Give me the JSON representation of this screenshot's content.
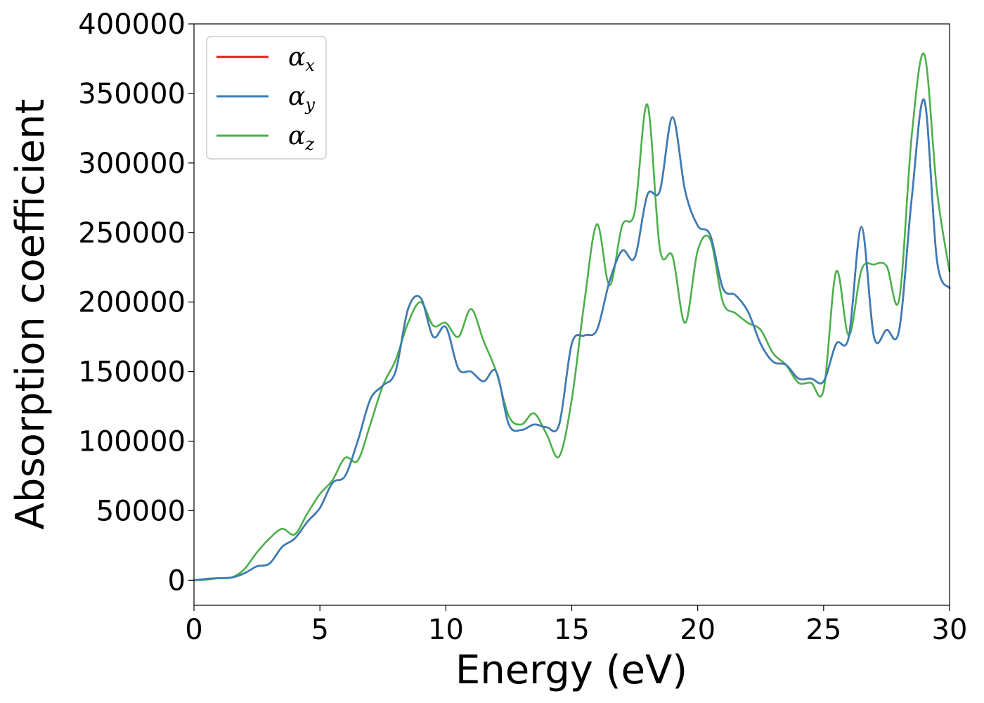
{
  "chart_data": {
    "type": "line",
    "xlabel": "Energy (eV)",
    "ylabel": "Absorption coefficient",
    "xlim": [
      0,
      30
    ],
    "ylim": [
      -18000,
      400000
    ],
    "xticks": [
      0,
      5,
      10,
      15,
      20,
      25,
      30
    ],
    "xtick_labels": [
      "0",
      "5",
      "10",
      "15",
      "20",
      "25",
      "30"
    ],
    "yticks": [
      0,
      50000,
      100000,
      150000,
      200000,
      250000,
      300000,
      350000,
      400000
    ],
    "ytick_labels": [
      "0",
      "50000",
      "100000",
      "150000",
      "200000",
      "250000",
      "300000",
      "350000",
      "400000"
    ],
    "grid": false,
    "legend": {
      "position": "top-left"
    },
    "series": [
      {
        "name": "α",
        "subscript": "x",
        "color": "#e41a1c",
        "x": [
          0,
          0.5,
          1,
          1.5,
          2,
          2.5,
          3,
          3.5,
          4,
          4.5,
          5,
          5.5,
          6,
          6.5,
          7,
          7.5,
          8,
          8.5,
          9,
          9.5,
          10,
          10.5,
          11,
          11.5,
          12,
          12.5,
          13,
          13.5,
          14,
          14.5,
          15,
          15.5,
          16,
          16.5,
          17,
          17.5,
          18,
          18.5,
          19,
          19.5,
          20,
          20.5,
          21,
          21.5,
          22,
          22.5,
          23,
          23.5,
          24,
          24.5,
          25,
          25.5,
          26,
          26.5,
          27,
          27.5,
          28,
          28.5,
          29,
          29.5,
          30
        ],
        "y": [
          0,
          1000,
          1500,
          2000,
          5000,
          10000,
          12000,
          24000,
          30000,
          42000,
          52000,
          70000,
          75000,
          100000,
          130000,
          140000,
          150000,
          195000,
          203000,
          175000,
          182000,
          152000,
          150000,
          143000,
          150000,
          112000,
          108000,
          112000,
          110000,
          112000,
          170000,
          176000,
          180000,
          215000,
          237000,
          232000,
          277000,
          280000,
          333000,
          280000,
          255000,
          248000,
          210000,
          205000,
          193000,
          170000,
          157000,
          155000,
          145000,
          145000,
          143000,
          170000,
          175000,
          254000,
          175000,
          180000,
          180000,
          275000,
          345000,
          230000,
          210000
        ]
      },
      {
        "name": "α",
        "subscript": "y",
        "color": "#377eb8",
        "x": [
          0,
          0.5,
          1,
          1.5,
          2,
          2.5,
          3,
          3.5,
          4,
          4.5,
          5,
          5.5,
          6,
          6.5,
          7,
          7.5,
          8,
          8.5,
          9,
          9.5,
          10,
          10.5,
          11,
          11.5,
          12,
          12.5,
          13,
          13.5,
          14,
          14.5,
          15,
          15.5,
          16,
          16.5,
          17,
          17.5,
          18,
          18.5,
          19,
          19.5,
          20,
          20.5,
          21,
          21.5,
          22,
          22.5,
          23,
          23.5,
          24,
          24.5,
          25,
          25.5,
          26,
          26.5,
          27,
          27.5,
          28,
          28.5,
          29,
          29.5,
          30
        ],
        "y": [
          0,
          1000,
          1500,
          2000,
          5000,
          10000,
          12000,
          24000,
          30000,
          42000,
          52000,
          70000,
          75000,
          100000,
          130000,
          140000,
          150000,
          195000,
          203000,
          175000,
          182000,
          152000,
          150000,
          143000,
          150000,
          112000,
          108000,
          112000,
          110000,
          112000,
          170000,
          176000,
          180000,
          215000,
          237000,
          232000,
          277000,
          280000,
          333000,
          280000,
          255000,
          248000,
          210000,
          205000,
          193000,
          170000,
          157000,
          155000,
          145000,
          145000,
          143000,
          170000,
          175000,
          254000,
          175000,
          180000,
          180000,
          275000,
          345000,
          230000,
          210000
        ]
      },
      {
        "name": "α",
        "subscript": "z",
        "color": "#4daf4a",
        "x": [
          0,
          0.5,
          1,
          1.5,
          2,
          2.5,
          3,
          3.5,
          4,
          4.5,
          5,
          5.5,
          6,
          6.5,
          7,
          7.5,
          8,
          8.5,
          9,
          9.5,
          10,
          10.5,
          11,
          11.5,
          12,
          12.5,
          13,
          13.5,
          14,
          14.5,
          15,
          15.5,
          16,
          16.5,
          17,
          17.5,
          18,
          18.5,
          19,
          19.5,
          20,
          20.5,
          21,
          21.5,
          22,
          22.5,
          23,
          23.5,
          24,
          24.5,
          25,
          25.5,
          26,
          26.5,
          27,
          27.5,
          28,
          28.5,
          29,
          29.5,
          30
        ],
        "y": [
          0,
          500,
          1500,
          2000,
          8000,
          20000,
          30000,
          37000,
          33000,
          48000,
          62000,
          72000,
          88000,
          86000,
          112000,
          140000,
          158000,
          185000,
          200000,
          183000,
          185000,
          175000,
          195000,
          172000,
          150000,
          118000,
          112000,
          120000,
          105000,
          89000,
          130000,
          200000,
          256000,
          212000,
          255000,
          265000,
          342000,
          238000,
          233000,
          185000,
          237000,
          245000,
          200000,
          192000,
          185000,
          180000,
          163000,
          155000,
          142000,
          142000,
          137000,
          222000,
          176000,
          223000,
          227000,
          226000,
          202000,
          320000,
          378000,
          280000,
          222000
        ]
      }
    ]
  }
}
